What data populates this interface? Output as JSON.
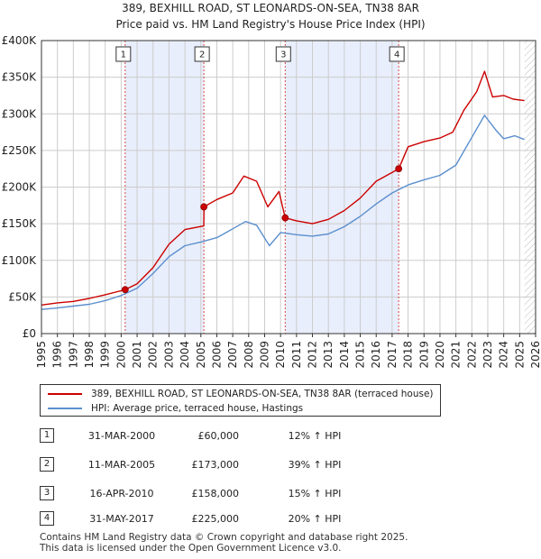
{
  "chart_data": {
    "type": "line",
    "title": "389, BEXHILL ROAD, ST LEONARDS-ON-SEA, TN38 8AR",
    "subtitle": "Price paid vs. HM Land Registry's House Price Index (HPI)",
    "xlim": [
      1995,
      2026
    ],
    "ylim": [
      0,
      400000
    ],
    "x_ticks": [
      "1995",
      "1996",
      "1997",
      "1998",
      "1999",
      "2000",
      "2001",
      "2002",
      "2003",
      "2004",
      "2005",
      "2006",
      "2007",
      "2008",
      "2009",
      "2010",
      "2011",
      "2012",
      "2013",
      "2014",
      "2015",
      "2016",
      "2017",
      "2018",
      "2019",
      "2020",
      "2021",
      "2022",
      "2023",
      "2024",
      "2025",
      "2026"
    ],
    "y_ticks": [
      {
        "value": 0,
        "label": "£0"
      },
      {
        "value": 50000,
        "label": "£50K"
      },
      {
        "value": 100000,
        "label": "£100K"
      },
      {
        "value": 150000,
        "label": "£150K"
      },
      {
        "value": 200000,
        "label": "£200K"
      },
      {
        "value": 250000,
        "label": "£250K"
      },
      {
        "value": 300000,
        "label": "£300K"
      },
      {
        "value": 350000,
        "label": "£350K"
      },
      {
        "value": 400000,
        "label": "£400K"
      }
    ],
    "grid": true,
    "series": [
      {
        "name": "389, BEXHILL ROAD, ST LEONARDS-ON-SEA, TN38 8AR (terraced house)",
        "color": "#cc0000",
        "x": [
          1995,
          1996,
          1997,
          1998,
          1999,
          2000.25,
          2001,
          2002,
          2003,
          2004,
          2005.18,
          2005.2,
          2006,
          2007,
          2007.7,
          2008.5,
          2009.2,
          2009.9,
          2010.29,
          2011,
          2012,
          2013,
          2014,
          2015,
          2016,
          2017.41,
          2018,
          2019,
          2020,
          2020.8,
          2021.5,
          2022.3,
          2022.8,
          2023.3,
          2024,
          2024.6,
          2025.3
        ],
        "y": [
          39000,
          42000,
          44000,
          48000,
          53000,
          60000,
          68000,
          90000,
          122000,
          142000,
          147000,
          173000,
          183000,
          192000,
          215000,
          208000,
          173000,
          194000,
          158000,
          154000,
          150000,
          156000,
          168000,
          185000,
          208000,
          225000,
          255000,
          262000,
          267000,
          275000,
          305000,
          330000,
          358000,
          323000,
          325000,
          320000,
          318000
        ]
      },
      {
        "name": "HPI: Average price, terraced house, Hastings",
        "color": "#5b8fcf",
        "x": [
          1995,
          1996,
          1997,
          1998,
          1999,
          2000,
          2001,
          2002,
          2003,
          2004,
          2005,
          2006,
          2007,
          2007.8,
          2008.5,
          2009.3,
          2010,
          2011,
          2012,
          2013,
          2014,
          2015,
          2016,
          2017,
          2018,
          2019,
          2020,
          2021,
          2022,
          2022.8,
          2023.5,
          2024,
          2024.7,
          2025.3
        ],
        "y": [
          33000,
          35000,
          37500,
          40000,
          45000,
          52000,
          62000,
          82000,
          105000,
          120000,
          125000,
          131000,
          143000,
          153000,
          148000,
          120000,
          138000,
          135000,
          133000,
          136000,
          146000,
          160000,
          177000,
          192000,
          203000,
          210000,
          216000,
          230000,
          268000,
          298000,
          278000,
          266000,
          270000,
          265000
        ]
      }
    ],
    "transactions": [
      {
        "label": "1",
        "x": 2000.25,
        "y": 60000
      },
      {
        "label": "2",
        "x": 2005.19,
        "y": 173000
      },
      {
        "label": "3",
        "x": 2010.29,
        "y": 158000
      },
      {
        "label": "4",
        "x": 2017.41,
        "y": 225000
      }
    ]
  },
  "legend": {
    "property_label": "389, BEXHILL ROAD, ST LEONARDS-ON-SEA, TN38 8AR (terraced house)",
    "hpi_label": "HPI: Average price, terraced house, Hastings"
  },
  "sales": [
    {
      "num": "1",
      "date": "31-MAR-2000",
      "price": "£60,000",
      "hpi": "12% ↑ HPI"
    },
    {
      "num": "2",
      "date": "11-MAR-2005",
      "price": "£173,000",
      "hpi": "39% ↑ HPI"
    },
    {
      "num": "3",
      "date": "16-APR-2010",
      "price": "£158,000",
      "hpi": "15% ↑ HPI"
    },
    {
      "num": "4",
      "date": "31-MAY-2017",
      "price": "£225,000",
      "hpi": "20% ↑ HPI"
    }
  ],
  "footer": {
    "line1": "Contains HM Land Registry data © Crown copyright and database right 2025.",
    "line2": "This data is licensed under the Open Government Licence v3.0."
  },
  "colors": {
    "property": "#cc0000",
    "hpi": "#5b8fcf",
    "shade": "#e8eefb",
    "grid": "#cccccc"
  }
}
